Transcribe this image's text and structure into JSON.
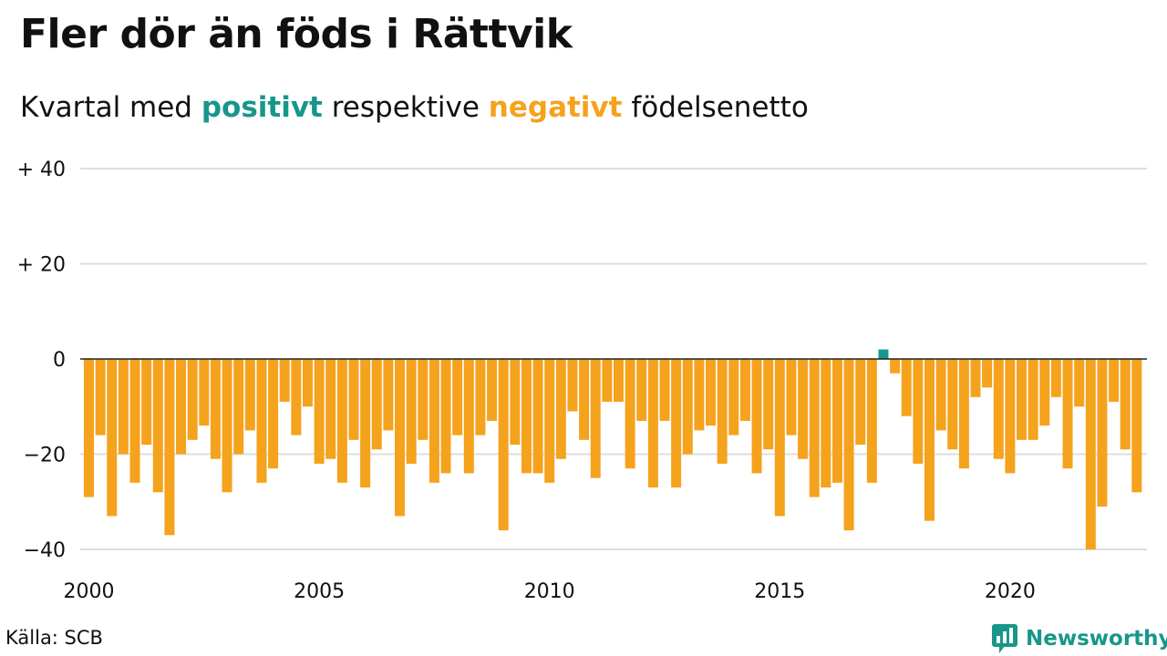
{
  "title": "Fler dör än föds i Rättvik",
  "subtitle": {
    "prefix": "Kvartal med ",
    "positive_word": "positivt",
    "middle": " respektive ",
    "negative_word": "negativt",
    "suffix": " födelsenetto"
  },
  "source": "Källa: SCB",
  "brand": {
    "name": "Newsworthy",
    "icon": "chart-bubble-icon"
  },
  "colors": {
    "positive": "#17978a",
    "negative": "#f5a21d",
    "grid": "#dddddd",
    "axis": "#222222"
  },
  "chart_data": {
    "type": "bar",
    "frequency": "quarterly",
    "start_period": "2000 Q1",
    "y_ticks": [
      {
        "value": 40,
        "label": "+ 40"
      },
      {
        "value": 20,
        "label": "+ 20"
      },
      {
        "value": 0,
        "label": "0"
      },
      {
        "value": -20,
        "label": "−20"
      },
      {
        "value": -40,
        "label": "−40"
      }
    ],
    "x_ticks": [
      {
        "index": 0,
        "label": "2000"
      },
      {
        "index": 20,
        "label": "2005"
      },
      {
        "index": 40,
        "label": "2010"
      },
      {
        "index": 60,
        "label": "2015"
      },
      {
        "index": 80,
        "label": "2020"
      }
    ],
    "ylim": [
      -42,
      42
    ],
    "grid": true,
    "values": [
      -29,
      -16,
      -33,
      -20,
      -26,
      -18,
      -28,
      -37,
      -20,
      -17,
      -14,
      -21,
      -28,
      -20,
      -15,
      -26,
      -23,
      -9,
      -16,
      -10,
      -22,
      -21,
      -26,
      -17,
      -27,
      -19,
      -15,
      -33,
      -22,
      -17,
      -26,
      -24,
      -16,
      -24,
      -16,
      -13,
      -36,
      -18,
      -24,
      -24,
      -26,
      -21,
      -11,
      -17,
      -25,
      -9,
      -9,
      -23,
      -13,
      -27,
      -13,
      -27,
      -20,
      -15,
      -14,
      -22,
      -16,
      -13,
      -24,
      -19,
      -33,
      -16,
      -21,
      -29,
      -27,
      -26,
      -36,
      -18,
      -26,
      2,
      -3,
      -12,
      -22,
      -34,
      -15,
      -19,
      -23,
      -8,
      -6,
      -21,
      -24,
      -17,
      -17,
      -14,
      -8,
      -23,
      -10,
      -40,
      -31,
      -9,
      -19,
      -28
    ]
  }
}
